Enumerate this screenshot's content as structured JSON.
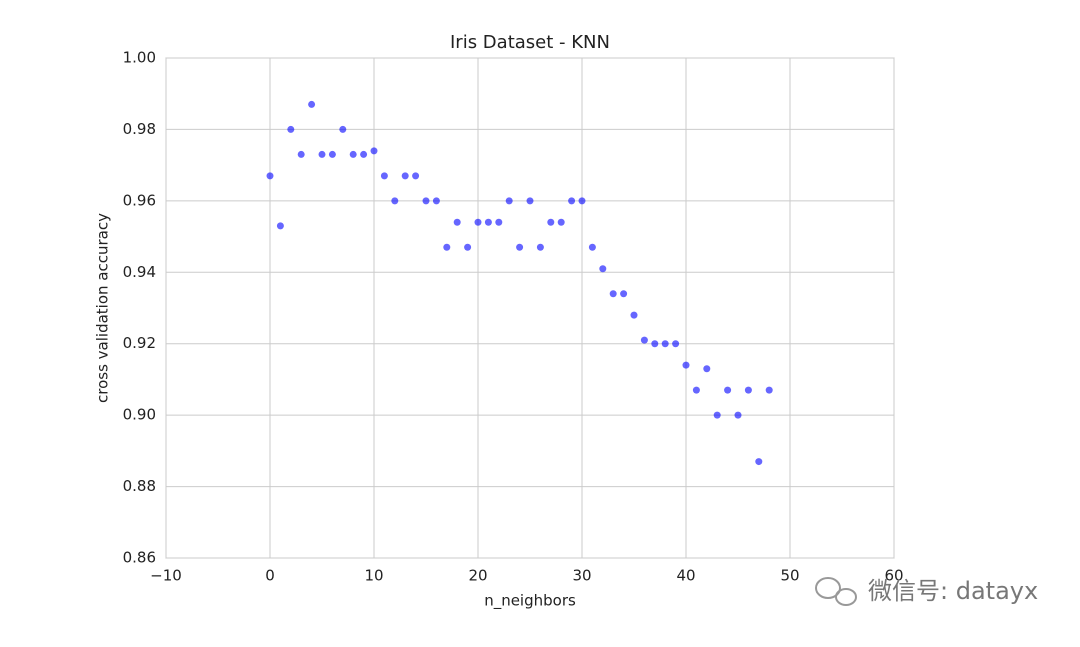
{
  "chart_data": {
    "type": "scatter",
    "title": "Iris Dataset - KNN",
    "xlabel": "n_neighbors",
    "ylabel": "cross validation accuracy",
    "x": [
      0,
      1,
      2,
      3,
      4,
      5,
      6,
      7,
      8,
      9,
      10,
      11,
      12,
      13,
      14,
      15,
      16,
      17,
      18,
      19,
      20,
      21,
      22,
      23,
      24,
      25,
      26,
      27,
      28,
      29,
      30,
      31,
      32,
      33,
      34,
      35,
      36,
      37,
      38,
      39,
      40,
      41,
      42,
      43,
      44,
      45,
      46,
      47,
      48
    ],
    "values": [
      0.967,
      0.953,
      0.98,
      0.973,
      0.987,
      0.973,
      0.973,
      0.98,
      0.973,
      0.973,
      0.974,
      0.967,
      0.96,
      0.967,
      0.967,
      0.96,
      0.96,
      0.947,
      0.954,
      0.947,
      0.954,
      0.954,
      0.954,
      0.96,
      0.947,
      0.96,
      0.947,
      0.954,
      0.954,
      0.96,
      0.96,
      0.947,
      0.941,
      0.934,
      0.934,
      0.928,
      0.921,
      0.92,
      0.92,
      0.92,
      0.914,
      0.907,
      0.913,
      0.9,
      0.907,
      0.9,
      0.907,
      0.887,
      0.907
    ],
    "color": "#0000ff",
    "xlim": [
      -10,
      60
    ],
    "xticks": [
      {
        "value": -10,
        "label": "−10"
      },
      0,
      10,
      20,
      30,
      40,
      50,
      60
    ],
    "ylim": [
      0.86,
      1.0
    ],
    "yticks": [
      {
        "value": 0.86,
        "label": "0.86"
      },
      {
        "value": 0.88,
        "label": "0.88"
      },
      {
        "value": 0.9,
        "label": "0.90"
      },
      {
        "value": 0.92,
        "label": "0.92"
      },
      {
        "value": 0.94,
        "label": "0.94"
      },
      {
        "value": 0.96,
        "label": "0.96"
      },
      {
        "value": 0.98,
        "label": "0.98"
      },
      {
        "value": 1.0,
        "label": "1.00"
      }
    ],
    "grid": true
  },
  "watermark": "微信号: datayx"
}
